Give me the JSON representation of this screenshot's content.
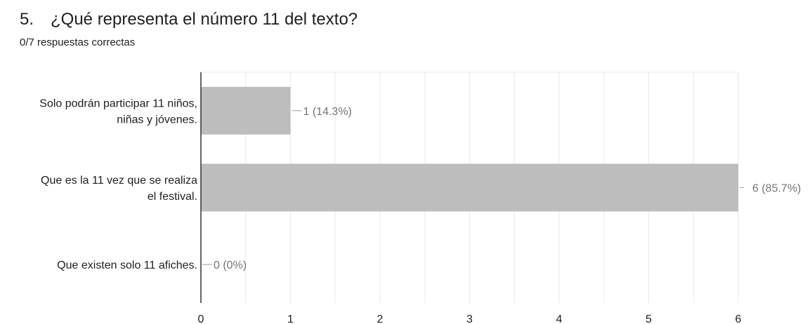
{
  "question": {
    "number": "5.",
    "title": "¿Qué representa el número 11 del texto?",
    "score": "0/7 respuestas correctas"
  },
  "colors": {
    "bar": "#bdbdbd",
    "grid": "#ebebeb",
    "axis": "#333333",
    "data_label": "#757575",
    "leader": "#9e9e9e"
  },
  "chart_data": {
    "type": "bar",
    "orientation": "horizontal",
    "categories": [
      [
        "Solo podrán participar 11 niños,",
        "niñas y jóvenes."
      ],
      [
        "Que es la 11 vez que se realiza",
        "el festival."
      ],
      [
        "Que existen solo 11 afiches."
      ]
    ],
    "values": [
      1,
      6,
      0
    ],
    "data_labels": [
      "1 (14.3%)",
      "6 (85.7%)",
      "0 (0%)"
    ],
    "xticks": [
      0,
      1,
      2,
      3,
      4,
      5,
      6
    ],
    "xlim": [
      0,
      6
    ],
    "grid": true,
    "legend": "none"
  }
}
